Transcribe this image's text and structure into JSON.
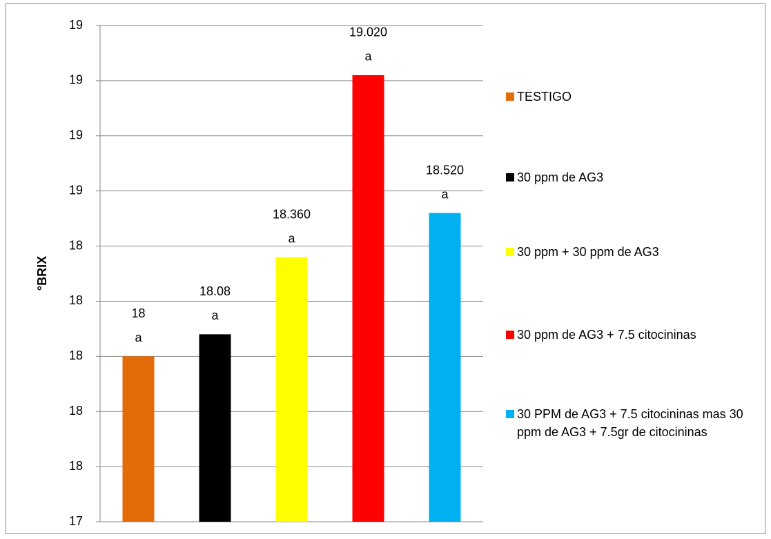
{
  "chart_data": {
    "type": "bar",
    "y_label": "°BRIX",
    "categories": [
      "TESTIGO",
      "30 ppm de AG3",
      "30 ppm + 30 ppm de AG3",
      "30 ppm de AG3 + 7.5 citocininas",
      "30 PPM de AG3 + 7.5 citocininas mas 30 ppm de AG3 + 7.5gr de citocininas"
    ],
    "values": [
      18,
      18.08,
      18.36,
      19.02,
      18.52
    ],
    "value_labels": [
      "18",
      "18.08",
      "18.360",
      "19.020",
      "18.520"
    ],
    "significance": [
      "a",
      "a",
      "a",
      "a",
      "a"
    ],
    "colors": [
      "#e36c09",
      "#000000",
      "#ffff00",
      "#ff0000",
      "#00b0f0"
    ],
    "ylim": [
      17.4,
      19.2
    ],
    "yticks": [
      {
        "value": 17.4,
        "label": "17"
      },
      {
        "value": 17.6,
        "label": "18"
      },
      {
        "value": 17.8,
        "label": "18"
      },
      {
        "value": 18.0,
        "label": "18"
      },
      {
        "value": 18.2,
        "label": "18"
      },
      {
        "value": 18.4,
        "label": "18"
      },
      {
        "value": 18.6,
        "label": "19"
      },
      {
        "value": 18.8,
        "label": "19"
      },
      {
        "value": 19.0,
        "label": "19"
      },
      {
        "value": 19.2,
        "label": "19"
      }
    ],
    "grid": true,
    "legend": "right"
  }
}
